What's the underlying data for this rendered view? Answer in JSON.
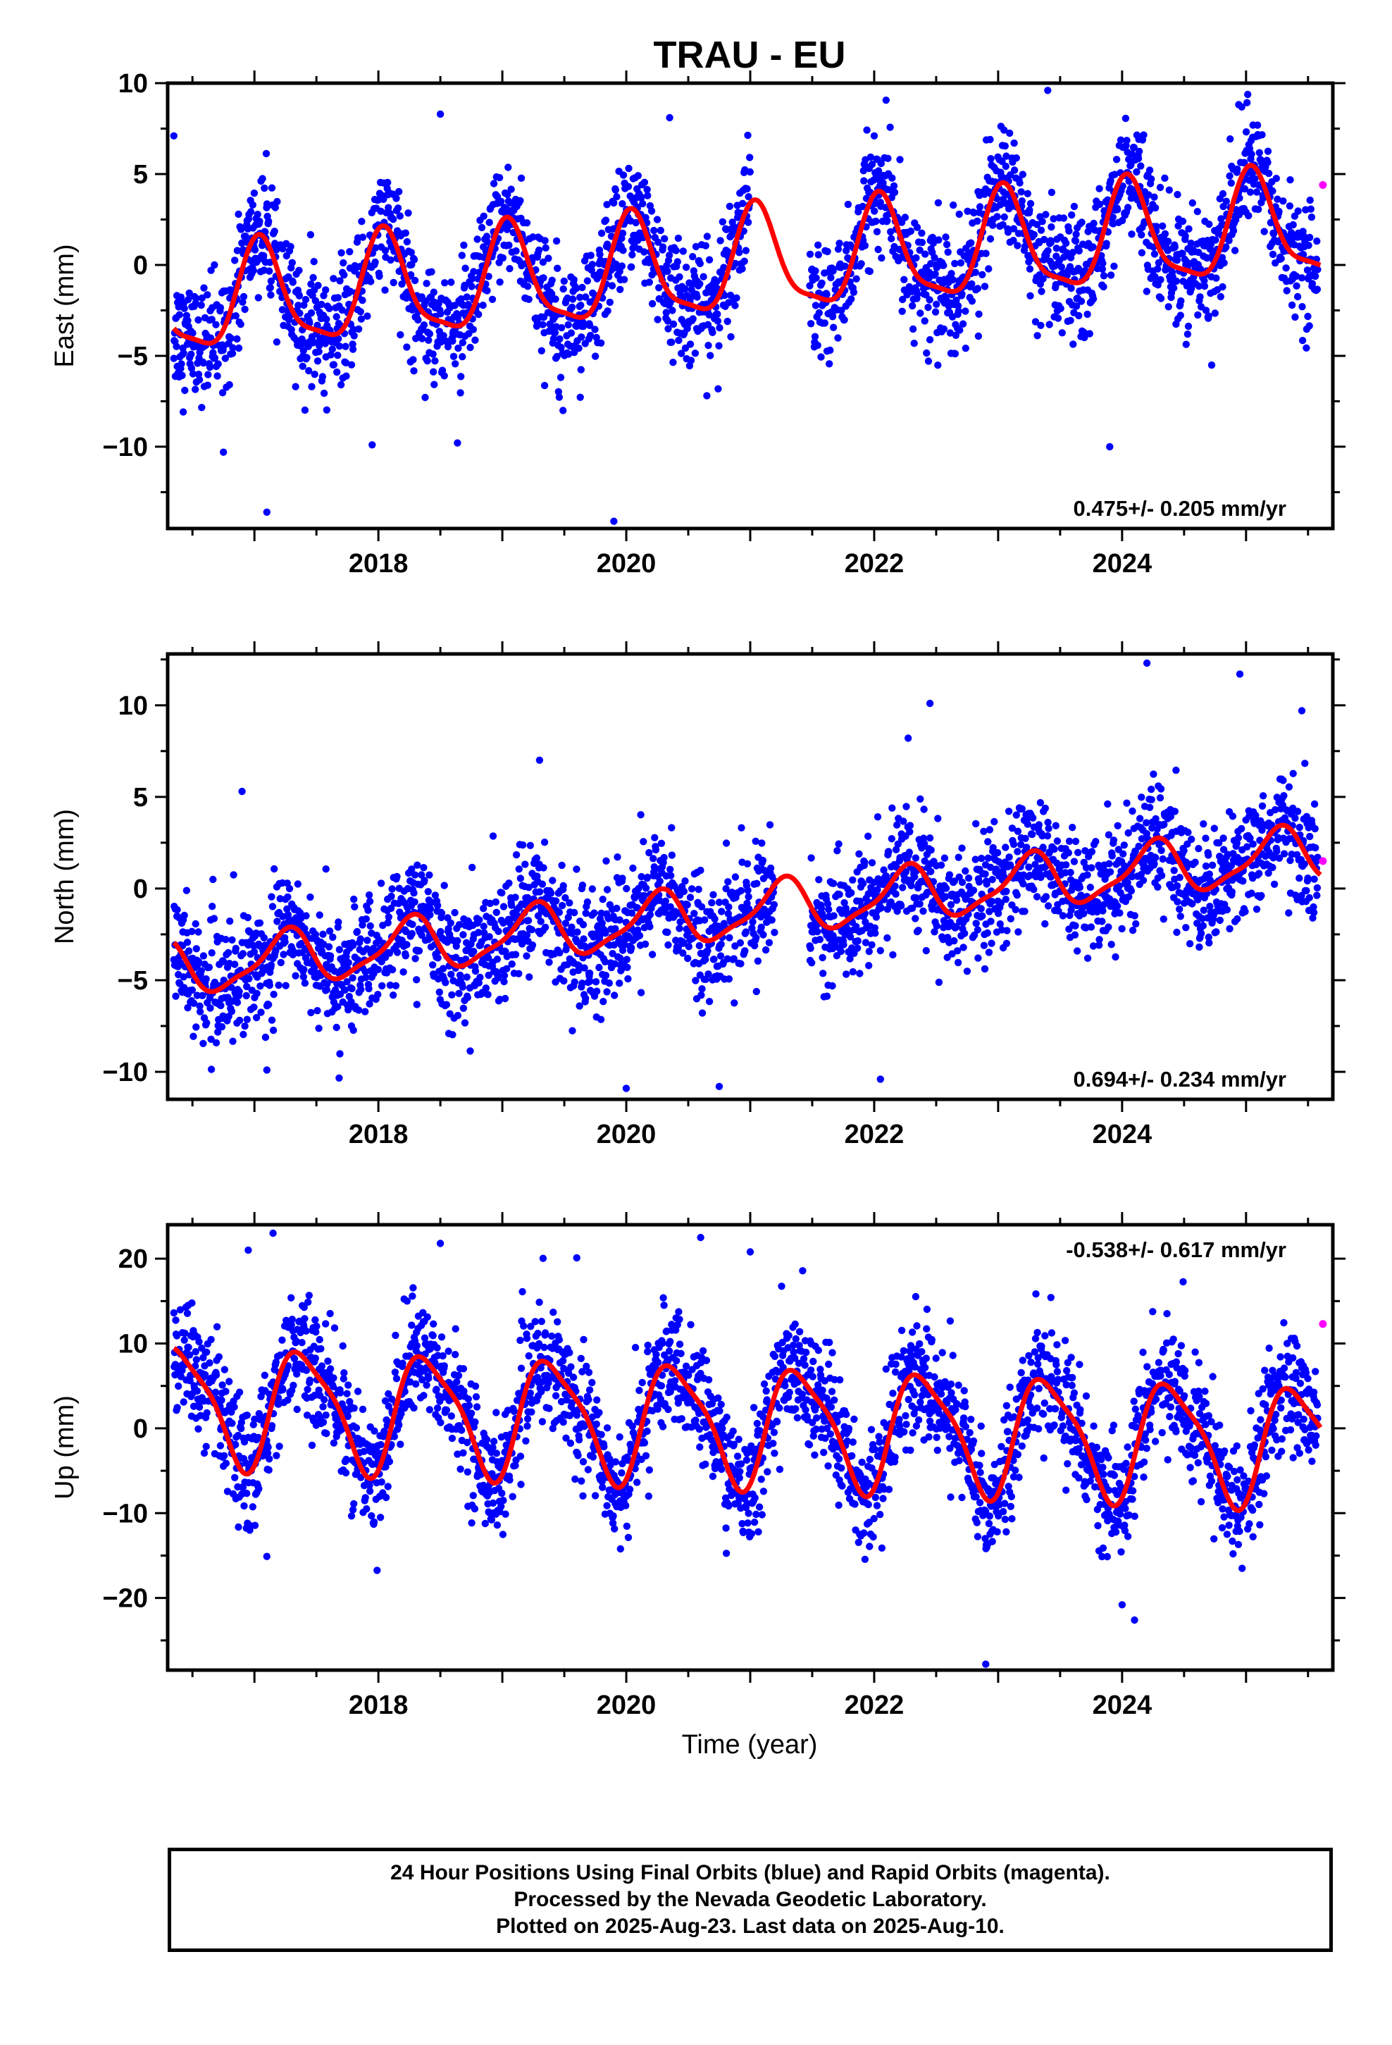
{
  "figure": {
    "title": "TRAU - EU",
    "xlabel": "Time (year)",
    "footer": [
      "24 Hour Positions Using Final Orbits (blue) and Rapid Orbits (magenta).",
      "Processed by the Nevada Geodetic Laboratory.",
      "Plotted on 2025-Aug-23. Last data on 2025-Aug-10."
    ]
  },
  "colors": {
    "final_orbits": "#0000ff",
    "rapid_orbits": "#ff00ff",
    "fit_line": "#ff0000",
    "axes": "#000000"
  },
  "chart_data": [
    {
      "type": "scatter",
      "ylabel": "East (mm)",
      "xlim": [
        2016.3,
        2025.7
      ],
      "ylim": [
        -14.5,
        10
      ],
      "yticks": [
        -10,
        -5,
        0,
        5,
        10
      ],
      "ytick_labels": [
        "−10",
        "−5",
        "0",
        "5",
        "10"
      ],
      "xticks": [
        2018,
        2020,
        2022,
        2024
      ],
      "xtick_labels": [
        "2018",
        "2020",
        "2022",
        "2024"
      ],
      "show_xtick_labels": true,
      "grid": false,
      "rate_annotation": "0.475+/- 0.205 mm/yr",
      "annotation_position": "bottom-right",
      "series": [
        {
          "kind": "final-orbits-scatter",
          "color": "#0000ff",
          "x_range": [
            2016.35,
            2025.58
          ],
          "x_gaps": [
            [
              2021.0,
              2021.48
            ]
          ],
          "model": {
            "offset": -2.2,
            "rate": 0.475,
            "ref_year": 2016.3,
            "amp_annual": 2.8,
            "phase_annual": 0.2,
            "amp_semi": 0.75,
            "phase_semi": 0.1
          },
          "scatter_sd": 1.6,
          "outliers": [
            [
              2016.35,
              7.1
            ],
            [
              2016.75,
              -10.3
            ],
            [
              2017.1,
              -13.6
            ],
            [
              2017.95,
              -9.9
            ],
            [
              2018.5,
              8.3
            ],
            [
              2019.9,
              -14.1
            ],
            [
              2020.35,
              8.1
            ],
            [
              2022.0,
              7.1
            ],
            [
              2023.4,
              9.6
            ],
            [
              2023.9,
              -10.0
            ]
          ]
        },
        {
          "kind": "rapid-orbits-scatter",
          "color": "#ff00ff",
          "points": [
            [
              2025.62,
              4.4
            ]
          ]
        }
      ]
    },
    {
      "type": "scatter",
      "ylabel": "North (mm)",
      "xlim": [
        2016.3,
        2025.7
      ],
      "ylim": [
        -11.5,
        12.8
      ],
      "yticks": [
        -10,
        -5,
        0,
        5,
        10
      ],
      "ytick_labels": [
        "−10",
        "−5",
        "0",
        "5",
        "10"
      ],
      "xticks": [
        2018,
        2020,
        2022,
        2024
      ],
      "xtick_labels": [
        "2018",
        "2020",
        "2022",
        "2024"
      ],
      "show_xtick_labels": true,
      "grid": false,
      "rate_annotation": "0.694+/- 0.234 mm/yr",
      "annotation_position": "bottom-right",
      "series": [
        {
          "kind": "final-orbits-scatter",
          "color": "#0000ff",
          "x_range": [
            2016.35,
            2025.58
          ],
          "x_gaps": [
            [
              2021.2,
              2021.48
            ]
          ],
          "model": {
            "offset": -4.5,
            "rate": 0.694,
            "ref_year": 2016.3,
            "amp_annual": 1.4,
            "phase_annual": 0.0,
            "amp_semi": 0.4,
            "phase_semi": 0.3
          },
          "scatter_sd": 1.6,
          "outliers": [
            [
              2016.9,
              5.3
            ],
            [
              2017.1,
              -9.9
            ],
            [
              2019.3,
              7.0
            ],
            [
              2020.0,
              -10.9
            ],
            [
              2020.75,
              -10.8
            ],
            [
              2022.05,
              -10.4
            ],
            [
              2022.45,
              10.1
            ],
            [
              2024.2,
              12.3
            ],
            [
              2024.95,
              11.7
            ],
            [
              2025.45,
              9.7
            ]
          ]
        },
        {
          "kind": "rapid-orbits-scatter",
          "color": "#ff00ff",
          "points": [
            [
              2025.62,
              1.5
            ]
          ]
        }
      ]
    },
    {
      "type": "scatter",
      "ylabel": "Up (mm)",
      "xlim": [
        2016.3,
        2025.7
      ],
      "ylim": [
        -28.5,
        24
      ],
      "yticks": [
        -20,
        -10,
        0,
        10,
        20
      ],
      "ytick_labels": [
        "−20",
        "−10",
        "0",
        "10",
        "20"
      ],
      "xticks": [
        2018,
        2020,
        2022,
        2024
      ],
      "xtick_labels": [
        "2018",
        "2020",
        "2022",
        "2024"
      ],
      "show_xtick_labels": true,
      "grid": false,
      "rate_annotation": "-0.538+/- 0.617 mm/yr",
      "annotation_position": "top-right",
      "series": [
        {
          "kind": "final-orbits-scatter",
          "color": "#0000ff",
          "x_range": [
            2016.35,
            2025.58
          ],
          "x_gaps": [],
          "model": {
            "offset": 3.0,
            "rate": -0.538,
            "ref_year": 2016.3,
            "amp_annual": 6.8,
            "phase_annual": -0.15,
            "amp_semi": 1.6,
            "phase_semi": 0.4
          },
          "scatter_sd": 3.4,
          "outliers": [
            [
              2016.95,
              21.0
            ],
            [
              2017.15,
              23.0
            ],
            [
              2017.1,
              -15.1
            ],
            [
              2018.5,
              21.8
            ],
            [
              2019.6,
              20.1
            ],
            [
              2020.6,
              22.5
            ],
            [
              2021.0,
              20.8
            ],
            [
              2022.9,
              -27.8
            ],
            [
              2024.0,
              -20.8
            ],
            [
              2024.1,
              -22.6
            ]
          ]
        },
        {
          "kind": "rapid-orbits-scatter",
          "color": "#ff00ff",
          "points": [
            [
              2025.62,
              12.3
            ]
          ]
        }
      ]
    }
  ]
}
